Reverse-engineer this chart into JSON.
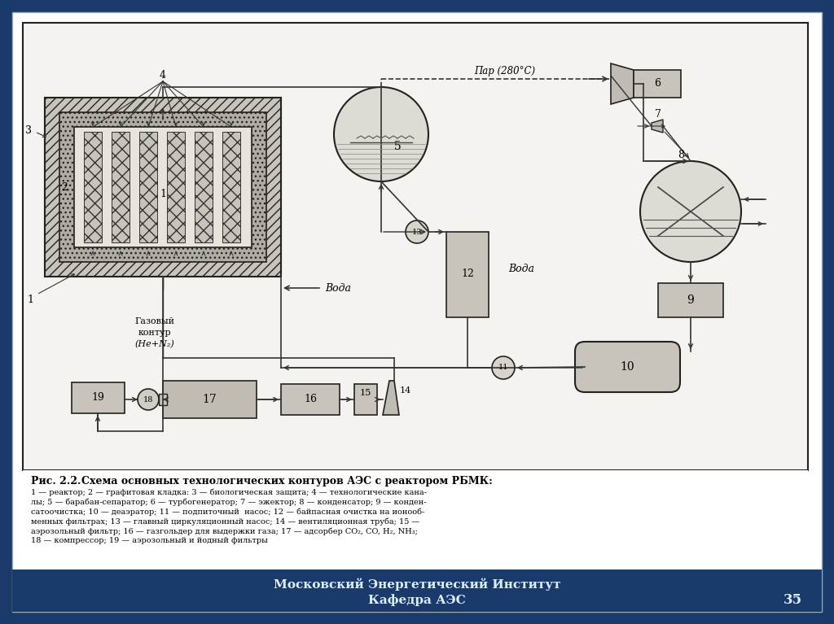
{
  "bg_color": "#1a3a6b",
  "title_line1": "Московский Энергетический Институт",
  "title_line2": "Кафедра АЭС",
  "page_num": "35",
  "caption_bold": "Рис. 2.2.",
  "caption_text": "Схема основных технологических контуров АЭС с реактором РБМК:",
  "caption_lines": [
    "1 — реактор; 2 — графитовая кладка: 3 — биологическая защита; 4 — технологические кана-",
    "лы; 5 — барабан-сепаратор; 6 — турбогенератор; 7 — эжектор; 8 — конденсатор; 9 — конден-",
    "сатоочистка; 10 — деаэратор; 11 — подпиточный  насос; 12 — байпасная очистка на ионооб-",
    "менных фильтрах; 13 — главный циркуляционный насос; 14 — вентиляционная труба; 15 —",
    "аэрозольный фильтр; 16 — газгольдер для выдержки газа; 17 — адсорбер CO₂, CO, H₂, NH₃;",
    "18 — компрессор; 19 — аэрозольный и йодный фильтры"
  ]
}
